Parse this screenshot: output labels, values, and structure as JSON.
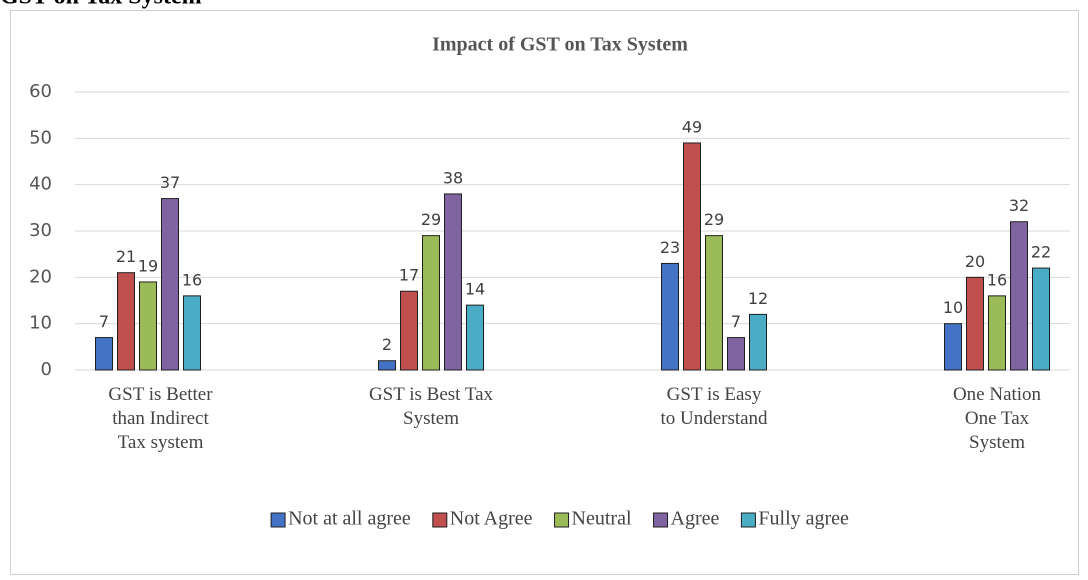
{
  "heading": "GST on Tax System",
  "chart_data": {
    "type": "bar",
    "title": "Impact of GST on Tax System",
    "categories": [
      "GST is Better than Indirect Tax system",
      "GST is Best Tax System",
      "GST is Easy to Understand",
      "One Nation One Tax System"
    ],
    "series": [
      {
        "name": "Not at all agree",
        "color": "#4472c4",
        "values": [
          7,
          2,
          23,
          10
        ]
      },
      {
        "name": "Not Agree",
        "color": "#c0504d",
        "values": [
          21,
          17,
          49,
          20
        ]
      },
      {
        "name": "Neutral",
        "color": "#9bbb59",
        "values": [
          19,
          29,
          29,
          16
        ]
      },
      {
        "name": "Agree",
        "color": "#8064a2",
        "values": [
          37,
          38,
          7,
          32
        ]
      },
      {
        "name": "Fully agree",
        "color": "#4bacc6",
        "values": [
          16,
          14,
          12,
          22
        ]
      }
    ],
    "ylim": [
      0,
      60
    ],
    "yticks": [
      0,
      10,
      20,
      30,
      40,
      50,
      60
    ],
    "grid": true,
    "legend": "bottom"
  }
}
